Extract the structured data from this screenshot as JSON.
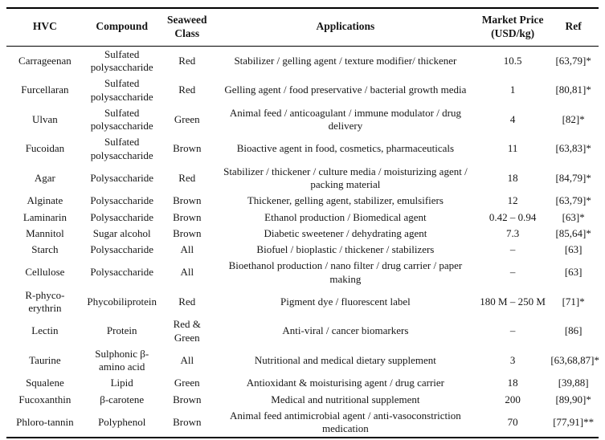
{
  "table": {
    "header": {
      "hvc": "HVC",
      "compound": "Compound",
      "seaweed_class": "Seaweed Class",
      "applications": "Applications",
      "price": "Market Price (USD/kg)",
      "ref": "Ref"
    },
    "rows": [
      {
        "hvc": "Carrageenan",
        "compound": "Sulfated polysaccharide",
        "seaweed_class": "Red",
        "applications": "Stabilizer / gelling agent / texture modifier/ thickener",
        "price": "10.5",
        "ref": "[63,79]*"
      },
      {
        "hvc": "Furcellaran",
        "compound": "Sulfated polysaccharide",
        "seaweed_class": "Red",
        "applications": "Gelling agent / food preservative / bacterial growth media",
        "price": "1",
        "ref": "[80,81]*"
      },
      {
        "hvc": "Ulvan",
        "compound": "Sulfated polysaccharide",
        "seaweed_class": "Green",
        "applications": "Animal feed / anticoagulant / immune modulator / drug delivery",
        "price": "4",
        "ref": "[82]*"
      },
      {
        "hvc": "Fucoidan",
        "compound": "Sulfated polysaccharide",
        "seaweed_class": "Brown",
        "applications": "Bioactive agent in food, cosmetics, pharmaceuticals",
        "price": "11",
        "ref": "[63,83]*"
      },
      {
        "hvc": "Agar",
        "compound": "Polysaccharide",
        "seaweed_class": "Red",
        "applications": "Stabilizer / thickener / culture media / moisturizing agent / packing material",
        "price": "18",
        "ref": "[84,79]*"
      },
      {
        "hvc": "Alginate",
        "compound": "Polysaccharide",
        "seaweed_class": "Brown",
        "applications": "Thickener, gelling agent, stabilizer, emulsifiers",
        "price": "12",
        "ref": "[63,79]*"
      },
      {
        "hvc": "Laminarin",
        "compound": "Polysaccharide",
        "seaweed_class": "Brown",
        "applications": "Ethanol production / Biomedical agent",
        "price": "0.42 – 0.94",
        "ref": "[63]*"
      },
      {
        "hvc": "Mannitol",
        "compound": "Sugar alcohol",
        "seaweed_class": "Brown",
        "applications": "Diabetic sweetener / dehydrating agent",
        "price": "7.3",
        "ref": "[85,64]*"
      },
      {
        "hvc": "Starch",
        "compound": "Polysaccharide",
        "seaweed_class": "All",
        "applications": "Biofuel / bioplastic / thickener / stabilizers",
        "price": "–",
        "ref": "[63]"
      },
      {
        "hvc": "Cellulose",
        "compound": "Polysaccharide",
        "seaweed_class": "All",
        "applications": "Bioethanol production / nano filter / drug carrier / paper making",
        "price": "–",
        "ref": "[63]"
      },
      {
        "hvc": "R-phyco-erythrin",
        "compound": "Phycobiliprotein",
        "seaweed_class": "Red",
        "applications": "Pigment dye / fluorescent label",
        "price": "180 M – 250 M",
        "ref": "[71]*"
      },
      {
        "hvc": "Lectin",
        "compound": "Protein",
        "seaweed_class": "Red & Green",
        "applications": "Anti-viral / cancer biomarkers",
        "price": "–",
        "ref": "[86]"
      },
      {
        "hvc": "Taurine",
        "compound": "Sulphonic β-amino acid",
        "seaweed_class": "All",
        "applications": "Nutritional and medical dietary supplement",
        "price": "3",
        "ref": "[63,68,87]*"
      },
      {
        "hvc": "Squalene",
        "compound": "Lipid",
        "seaweed_class": "Green",
        "applications": "Antioxidant & moisturising agent / drug carrier",
        "price": "18",
        "ref": "[39,88]"
      },
      {
        "hvc": "Fucoxanthin",
        "compound": "β-carotene",
        "seaweed_class": "Brown",
        "applications": "Medical and nutritional supplement",
        "price": "200",
        "ref": "[89,90]*"
      },
      {
        "hvc": "Phloro-tannin",
        "compound": "Polyphenol",
        "seaweed_class": "Brown",
        "applications": "Animal feed antimicrobial agent / anti-vasoconstriction medication",
        "price": "70",
        "ref": "[77,91]**"
      }
    ]
  }
}
